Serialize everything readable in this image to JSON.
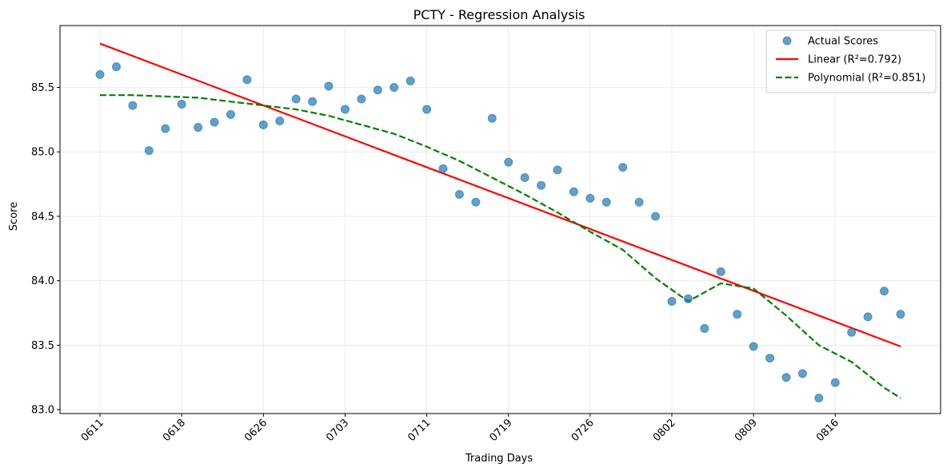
{
  "chart_data": {
    "type": "scatter",
    "title": "PCTY - Regression Analysis",
    "xlabel": "Trading Days",
    "ylabel": "Score",
    "grid": true,
    "legend_position": "top-right",
    "x_tick_labels": [
      "0611",
      "0618",
      "0626",
      "0703",
      "0711",
      "0719",
      "0726",
      "0802",
      "0809",
      "0816"
    ],
    "y_ticks": [
      83.0,
      83.5,
      84.0,
      84.5,
      85.0,
      85.5
    ],
    "y_tick_labels": [
      "83.0",
      "83.5",
      "84.0",
      "84.5",
      "85.0",
      "85.5"
    ],
    "ylim": [
      82.97,
      85.98
    ],
    "series": [
      {
        "name": "Actual Scores",
        "kind": "scatter",
        "color": "#1f77b4",
        "x": [
          0,
          1,
          2,
          3,
          4,
          5,
          6,
          7,
          8,
          9,
          10,
          11,
          12,
          13,
          14,
          15,
          16,
          17,
          18,
          19,
          20,
          21,
          22,
          23,
          24,
          25,
          26,
          27,
          28,
          29,
          30,
          31,
          32,
          33,
          34,
          35,
          36,
          37,
          38,
          39,
          40,
          41,
          42,
          43,
          44,
          45,
          46,
          47,
          48,
          49
        ],
        "y": [
          85.6,
          85.66,
          85.36,
          85.01,
          85.18,
          85.37,
          85.19,
          85.23,
          85.29,
          85.56,
          85.21,
          85.24,
          85.41,
          85.39,
          85.51,
          85.33,
          85.41,
          85.48,
          85.5,
          85.55,
          85.33,
          84.87,
          84.67,
          84.61,
          85.26,
          84.92,
          84.8,
          84.74,
          84.86,
          84.69,
          84.64,
          84.61,
          84.88,
          84.61,
          84.5,
          83.84,
          83.86,
          83.63,
          84.07,
          83.74,
          83.49,
          83.4,
          83.25,
          83.28,
          83.09,
          83.21,
          83.6,
          83.72,
          83.92,
          83.74
        ]
      },
      {
        "name": "Linear (R²=0.792)",
        "kind": "line",
        "color": "#ff0000",
        "x": [
          0,
          49
        ],
        "y": [
          85.84,
          83.49
        ]
      },
      {
        "name": "Polynomial (R²=0.851)",
        "kind": "dashed-line",
        "color": "#008000",
        "x": [
          0,
          2,
          4,
          6,
          8,
          10,
          12,
          14,
          16,
          18,
          20,
          22,
          24,
          26,
          28,
          30,
          32,
          34,
          36,
          38,
          40,
          42,
          44,
          46,
          48,
          49
        ],
        "y": [
          85.44,
          85.44,
          85.43,
          85.42,
          85.39,
          85.36,
          85.33,
          85.28,
          85.21,
          85.14,
          85.04,
          84.93,
          84.8,
          84.67,
          84.53,
          84.38,
          84.24,
          84.02,
          83.84,
          83.98,
          83.94,
          83.73,
          83.5,
          83.37,
          83.17,
          83.09
        ]
      }
    ]
  }
}
